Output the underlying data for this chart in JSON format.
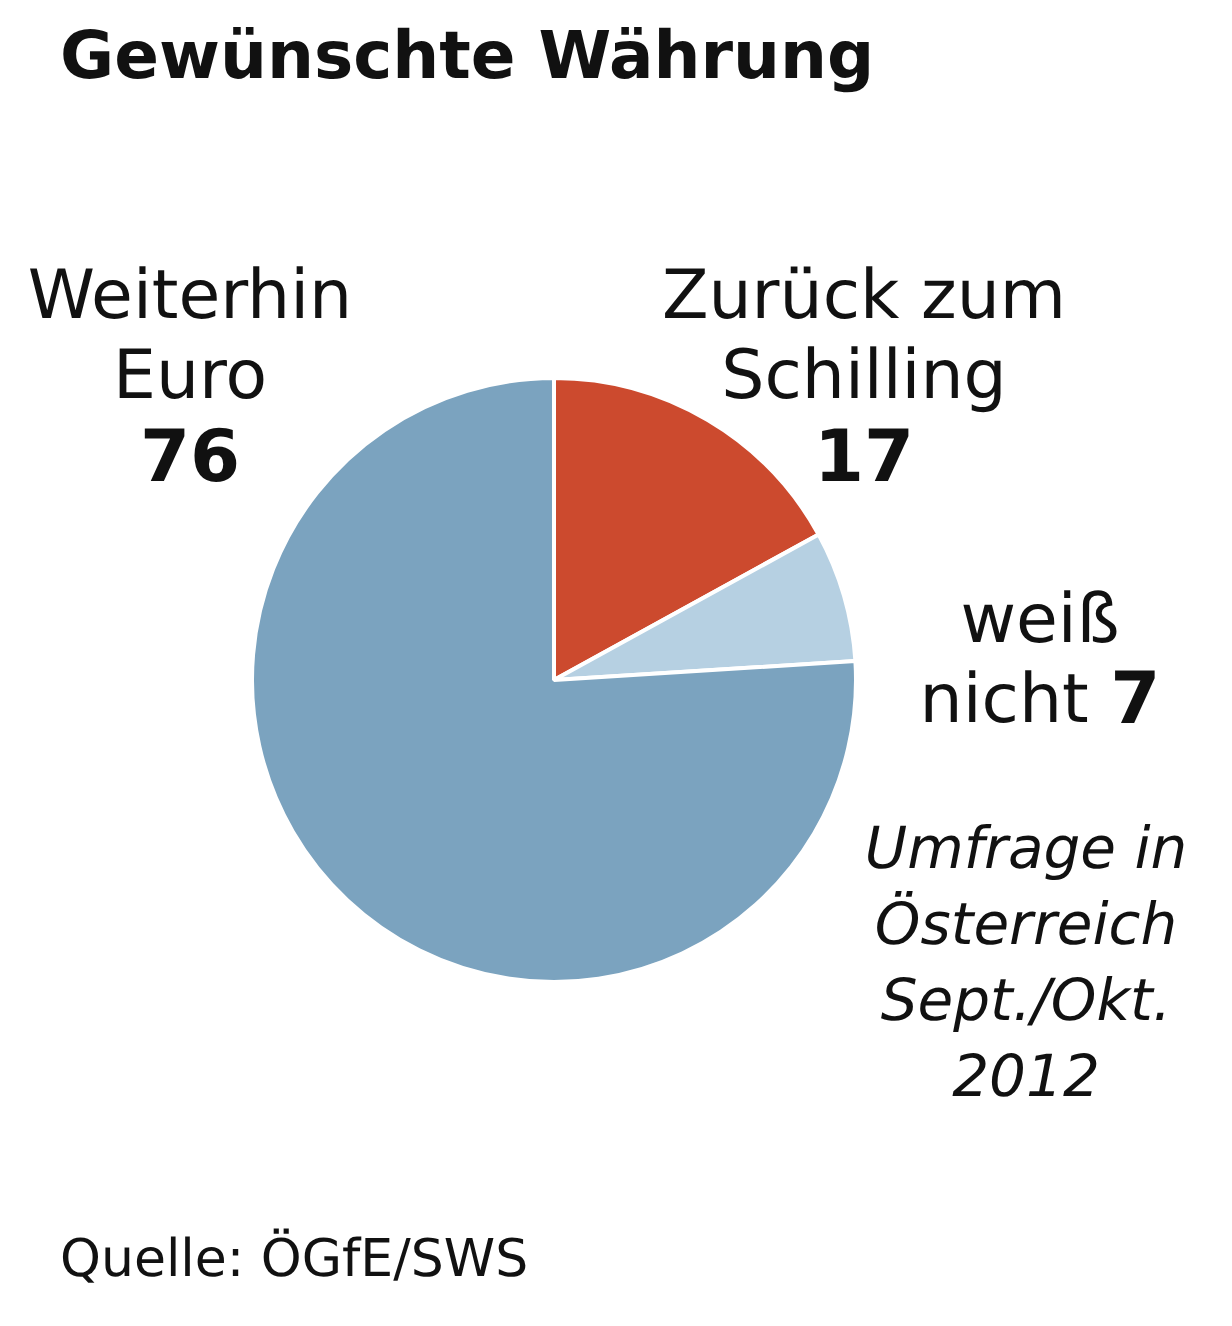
{
  "chart_data": {
    "type": "pie",
    "title": "Gewünschte Währung",
    "categories": [
      "Zurück zum Schilling",
      "weiß nicht",
      "Weiterhin Euro"
    ],
    "values": [
      17,
      7,
      76
    ],
    "colors": [
      "#cc4a2e",
      "#b6d0e2",
      "#7ba3bf"
    ],
    "data_labels": true,
    "legend": false,
    "annotations": [
      "Umfrage in Österreich Sept./Okt. 2012",
      "Quelle: ÖGfE/SWS"
    ]
  }
}
